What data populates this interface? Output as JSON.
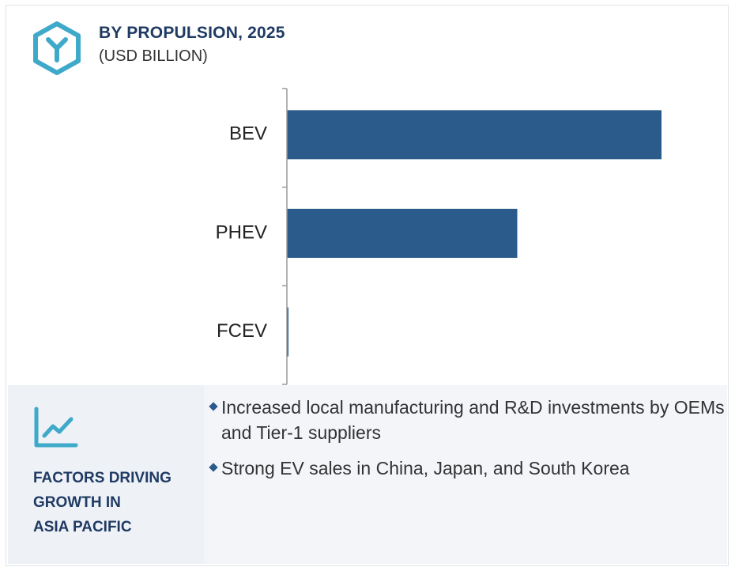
{
  "header": {
    "title": "BY PROPULSION, 2025",
    "subtitle": "(USD BILLION)",
    "logo_icon": "hexagon-y-logo-icon"
  },
  "chart_data": {
    "type": "bar",
    "orientation": "horizontal",
    "categories": [
      "BEV",
      "PHEV",
      "FCEV"
    ],
    "values": [
      100,
      61.5,
      0.3
    ],
    "xlim": [
      0,
      100
    ],
    "title": "BY PROPULSION, 2025",
    "subtitle": "(USD BILLION)",
    "xlabel": "",
    "ylabel": "",
    "grid": false,
    "legend": "none",
    "bar_color": "#2a5b8b"
  },
  "factors": {
    "icon": "line-chart-trend-icon",
    "heading": [
      "FACTORS DRIVING",
      "GROWTH IN",
      "ASIA PACIFIC"
    ],
    "bullets": [
      "Increased local manufacturing and R&D investments by OEMs and Tier-1 suppliers",
      "Strong EV sales in China, Japan, and South Korea"
    ]
  },
  "colors": {
    "accent": "#2a5b8b",
    "heading": "#1f3a63",
    "logo": "#3fa9c9",
    "panel": "#f3f5f9"
  }
}
